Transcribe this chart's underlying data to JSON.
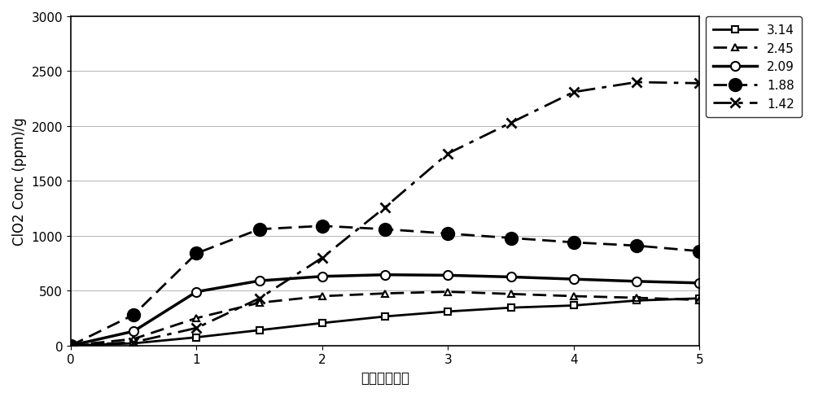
{
  "xlabel": "时间（小时）",
  "ylabel": "ClO2 Conc (ppm)/g",
  "xlim": [
    0,
    5
  ],
  "ylim": [
    0,
    3000
  ],
  "yticks": [
    0,
    500,
    1000,
    1500,
    2000,
    2500,
    3000
  ],
  "xticks": [
    0,
    1,
    2,
    3,
    4,
    5
  ],
  "series": [
    {
      "label": "3.14",
      "x": [
        0,
        0.5,
        1.0,
        1.5,
        2.0,
        2.5,
        3.0,
        3.5,
        4.0,
        4.5,
        5.0
      ],
      "y": [
        0,
        20,
        75,
        140,
        205,
        265,
        310,
        345,
        365,
        410,
        430
      ],
      "linestyle": "-",
      "marker": "s",
      "markersize": 6,
      "markerfacecolor": "white",
      "markeredgewidth": 1.5,
      "linewidth": 2.0,
      "color": "#000000",
      "dashes": []
    },
    {
      "label": "2.45",
      "x": [
        0,
        0.5,
        1.0,
        1.5,
        2.0,
        2.5,
        3.0,
        3.5,
        4.0,
        4.5,
        5.0
      ],
      "y": [
        0,
        60,
        250,
        390,
        450,
        475,
        490,
        470,
        450,
        435,
        415
      ],
      "linestyle": "--",
      "marker": "^",
      "markersize": 6,
      "markerfacecolor": "white",
      "markeredgewidth": 1.5,
      "linewidth": 2.0,
      "color": "#000000",
      "dashes": [
        6,
        3
      ]
    },
    {
      "label": "2.09",
      "x": [
        0,
        0.5,
        1.0,
        1.5,
        2.0,
        2.5,
        3.0,
        3.5,
        4.0,
        4.5,
        5.0
      ],
      "y": [
        0,
        130,
        490,
        590,
        630,
        645,
        640,
        625,
        605,
        585,
        570
      ],
      "linestyle": "-",
      "marker": "o",
      "markersize": 8,
      "markerfacecolor": "white",
      "markeredgewidth": 1.5,
      "linewidth": 2.5,
      "color": "#000000",
      "dashes": []
    },
    {
      "label": "1.88",
      "x": [
        0,
        0.5,
        1.0,
        1.5,
        2.0,
        2.5,
        3.0,
        3.5,
        4.0,
        4.5,
        5.0
      ],
      "y": [
        0,
        280,
        840,
        1060,
        1090,
        1060,
        1020,
        980,
        940,
        910,
        860
      ],
      "linestyle": "--",
      "marker": "o",
      "markersize": 11,
      "markerfacecolor": "#000000",
      "markeredgewidth": 1.5,
      "linewidth": 2.0,
      "color": "#000000",
      "dashes": [
        6,
        3
      ]
    },
    {
      "label": "1.42",
      "x": [
        0,
        0.5,
        1.0,
        1.5,
        2.0,
        2.5,
        3.0,
        3.5,
        4.0,
        4.5,
        5.0
      ],
      "y": [
        0,
        30,
        160,
        430,
        800,
        1260,
        1750,
        2030,
        2310,
        2400,
        2390
      ],
      "linestyle": "-.",
      "marker": "x",
      "markersize": 9,
      "markerfacecolor": "#000000",
      "markeredgewidth": 2.0,
      "linewidth": 2.0,
      "color": "#000000",
      "dashes": [
        8,
        3,
        2,
        3
      ]
    }
  ],
  "background_color": "#ffffff",
  "legend_fontsize": 11,
  "axis_fontsize": 12,
  "tick_fontsize": 11,
  "figsize": [
    10.0,
    4.89
  ]
}
